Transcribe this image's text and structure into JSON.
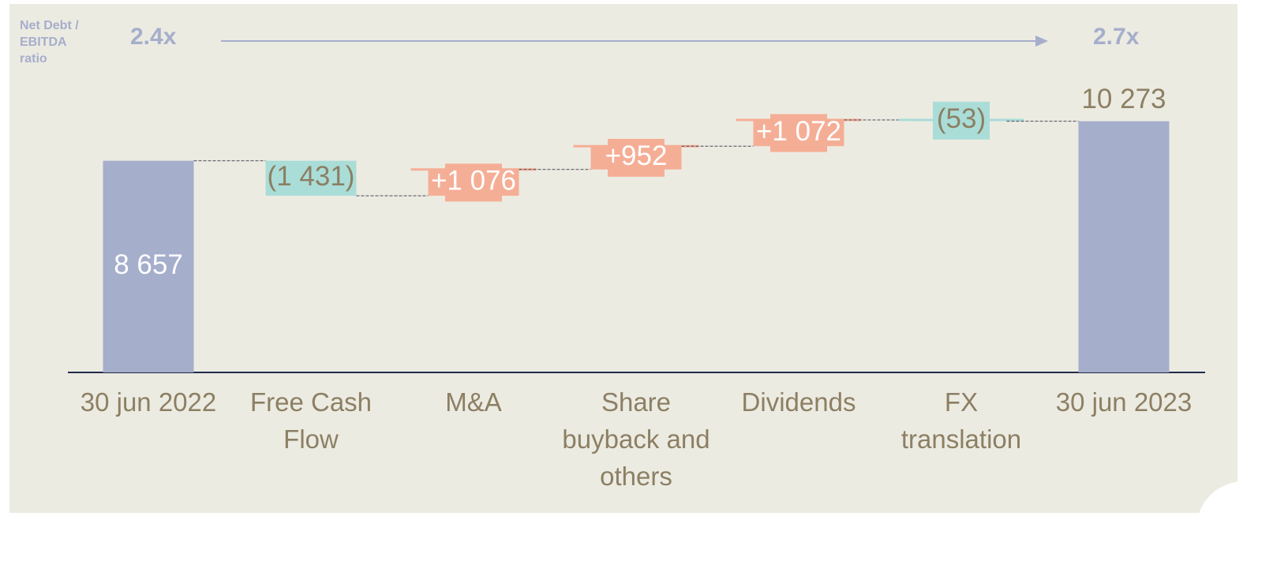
{
  "chart_data": {
    "type": "waterfall",
    "ratio_label": "Net Debt / EBITDA ratio",
    "ratio_start": "2.4x",
    "ratio_end": "2.7x",
    "categories": [
      "30 jun 2022",
      "Free Cash Flow",
      "M&A",
      "Share buyback and others",
      "Dividends",
      "FX translation",
      "30 jun 2023"
    ],
    "values": [
      8657,
      -1431,
      1076,
      952,
      1072,
      -53,
      10273
    ],
    "value_labels": [
      "8 657",
      "(1 431)",
      "+1 076",
      "+952",
      "+1 072",
      "(53)",
      "10 273"
    ],
    "measures": [
      "total",
      "relative",
      "relative",
      "relative",
      "relative",
      "relative",
      "total"
    ],
    "colors": {
      "total": "#a5aecb",
      "increase": "#f5ae96",
      "decrease": "#aaddd8"
    }
  }
}
